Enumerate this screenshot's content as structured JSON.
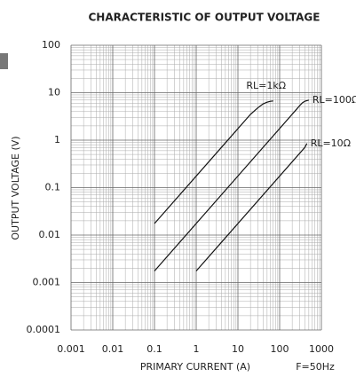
{
  "chart_data": {
    "type": "line",
    "title": "CHARACTERISTIC OF OUTPUT VOLTAGE",
    "x_label": "PRIMARY CURRENT (A)",
    "y_label": "OUTPUT VOLTAGE (V)",
    "annotation": "F=50Hz",
    "log_x": true,
    "log_y": true,
    "grid": true,
    "xlim": [
      0.001,
      1000
    ],
    "xticks": [
      0.001,
      0.01,
      0.1,
      1,
      10,
      100,
      1000
    ],
    "ylim": [
      0.0001,
      100
    ],
    "yticks": [
      0.0001,
      0.001,
      0.01,
      0.1,
      1,
      10,
      100
    ],
    "series": [
      {
        "name": "RL=1kΩ",
        "color": "#111111",
        "x": [
          0.1,
          20,
          30,
          40,
          50,
          60,
          70
        ],
        "values": [
          0.0175,
          3.5,
          4.8,
          5.8,
          6.3,
          6.6,
          6.7
        ]
      },
      {
        "name": "RL=100Ω",
        "color": "#111111",
        "x": [
          0.1,
          250,
          300,
          350,
          400,
          500
        ],
        "values": [
          0.00175,
          4.4,
          5.3,
          6.1,
          6.6,
          7.0
        ]
      },
      {
        "name": "RL=10Ω",
        "color": "#111111",
        "x": [
          1,
          400,
          450
        ],
        "values": [
          0.00175,
          0.7,
          0.85
        ]
      }
    ]
  }
}
